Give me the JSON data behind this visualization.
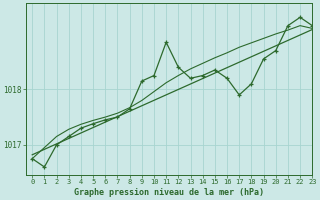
{
  "title": "Graphe pression niveau de la mer (hPa)",
  "background_color": "#cce8e6",
  "plot_bg_color": "#cce8e6",
  "grid_color": "#a8d4d0",
  "line_color": "#2d6a2d",
  "xlim": [
    -0.5,
    23
  ],
  "ylim": [
    1016.45,
    1019.55
  ],
  "yticks": [
    1017,
    1018
  ],
  "xticks": [
    0,
    1,
    2,
    3,
    4,
    5,
    6,
    7,
    8,
    9,
    10,
    11,
    12,
    13,
    14,
    15,
    16,
    17,
    18,
    19,
    20,
    21,
    22,
    23
  ],
  "main_x": [
    0,
    1,
    2,
    3,
    4,
    5,
    6,
    7,
    8,
    9,
    10,
    11,
    12,
    13,
    14,
    15,
    16,
    17,
    18,
    19,
    20,
    21,
    22,
    23
  ],
  "main_y": [
    1016.75,
    1016.6,
    1017.0,
    1017.15,
    1017.3,
    1017.38,
    1017.45,
    1017.5,
    1017.65,
    1018.15,
    1018.25,
    1018.85,
    1018.4,
    1018.2,
    1018.25,
    1018.35,
    1018.2,
    1017.9,
    1018.1,
    1018.55,
    1018.7,
    1019.15,
    1019.3,
    1019.15
  ],
  "smooth_x": [
    0,
    1,
    2,
    3,
    4,
    5,
    6,
    7,
    8,
    9,
    10,
    11,
    12,
    13,
    14,
    15,
    16,
    17,
    18,
    19,
    20,
    21,
    22,
    23
  ],
  "smooth_y": [
    1016.75,
    1016.95,
    1017.15,
    1017.28,
    1017.37,
    1017.44,
    1017.5,
    1017.57,
    1017.67,
    1017.8,
    1017.96,
    1018.12,
    1018.25,
    1018.37,
    1018.47,
    1018.57,
    1018.66,
    1018.76,
    1018.84,
    1018.92,
    1019.0,
    1019.07,
    1019.15,
    1019.1
  ],
  "trend_x": [
    0,
    23
  ],
  "trend_y": [
    1016.82,
    1019.08
  ]
}
